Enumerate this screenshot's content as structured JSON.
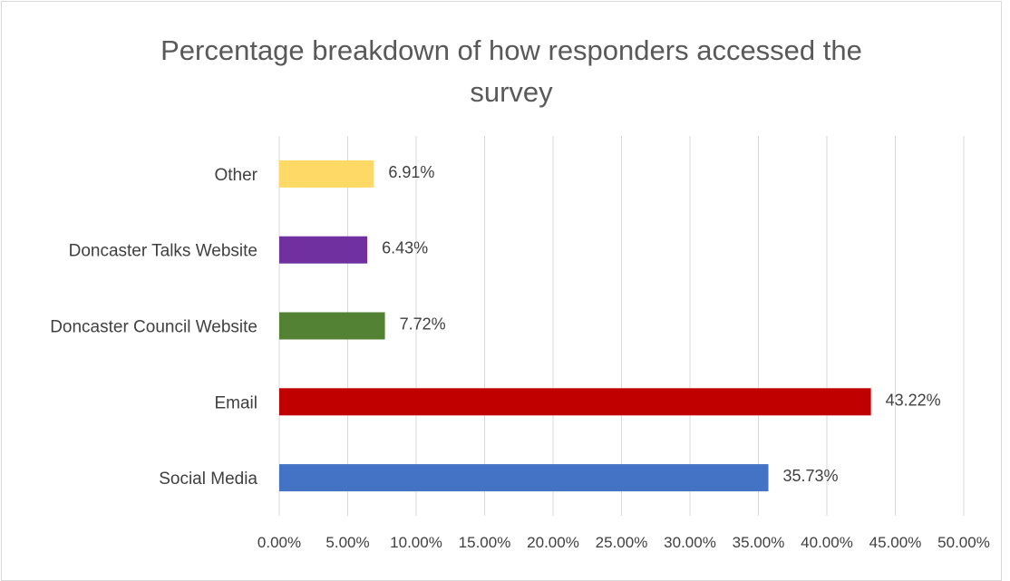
{
  "chart_data": {
    "type": "bar",
    "orientation": "horizontal",
    "title": "Percentage breakdown of how responders accessed the survey",
    "title_lines": [
      "Percentage breakdown of how responders accessed the",
      "survey"
    ],
    "xlabel": "",
    "ylabel": "",
    "categories": [
      "Other",
      "Doncaster Talks Website",
      "Doncaster Council Website",
      "Email",
      "Social Media"
    ],
    "values": [
      6.91,
      6.43,
      7.72,
      43.22,
      35.73
    ],
    "value_labels": [
      "6.91%",
      "6.43%",
      "7.72%",
      "43.22%",
      "35.73%"
    ],
    "colors": [
      "#FFD966",
      "#7030A0",
      "#548235",
      "#C00000",
      "#4472C4"
    ],
    "xlim": [
      0,
      50
    ],
    "x_ticks": [
      0,
      5,
      10,
      15,
      20,
      25,
      30,
      35,
      40,
      45,
      50
    ],
    "x_tick_labels": [
      "0.00%",
      "5.00%",
      "10.00%",
      "15.00%",
      "20.00%",
      "25.00%",
      "30.00%",
      "35.00%",
      "40.00%",
      "45.00%",
      "50.00%"
    ],
    "grid": true,
    "legend": "none"
  }
}
